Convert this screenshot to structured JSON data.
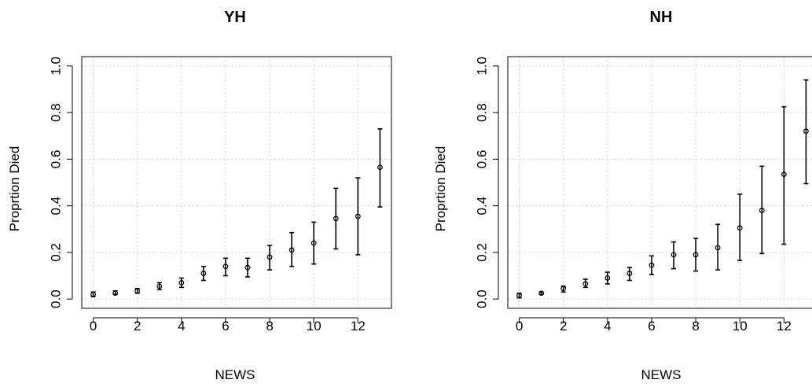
{
  "chart_data": [
    {
      "type": "scatter",
      "title": "YH",
      "x_label": "NEWS",
      "y_label": "Proprtion Died",
      "x": [
        0,
        1,
        2,
        3,
        4,
        5,
        6,
        7,
        8,
        9,
        10,
        11,
        12,
        13
      ],
      "series": [
        {
          "color": "#000000",
          "values": [
            0.02,
            0.025,
            0.035,
            0.055,
            0.07,
            0.11,
            0.14,
            0.135,
            0.18,
            0.21,
            0.24,
            0.345,
            0.355,
            0.565
          ],
          "lower": [
            0.01,
            0.02,
            0.025,
            0.04,
            0.05,
            0.08,
            0.1,
            0.095,
            0.125,
            0.14,
            0.15,
            0.215,
            0.19,
            0.395
          ],
          "upper": [
            0.03,
            0.035,
            0.045,
            0.07,
            0.09,
            0.14,
            0.175,
            0.175,
            0.23,
            0.285,
            0.33,
            0.475,
            0.52,
            0.73
          ]
        }
      ],
      "xlim": [
        -0.52,
        13.52
      ],
      "xticks": [
        0,
        2,
        4,
        6,
        8,
        10,
        12
      ],
      "ylim": [
        -0.04,
        1.04
      ],
      "yticks": [
        {
          "value": 0,
          "label": "0.0"
        },
        {
          "value": 0.2,
          "label": "0.2"
        },
        {
          "value": 0.4,
          "label": "0.4"
        },
        {
          "value": 0.6,
          "label": "0.6"
        },
        {
          "value": 0.8,
          "label": "0.8"
        },
        {
          "value": 1,
          "label": "1.0"
        }
      ],
      "grid": true
    },
    {
      "type": "scatter",
      "title": "NH",
      "x_label": "NEWS",
      "y_label": "Proprtion Died",
      "x": [
        0,
        1,
        2,
        3,
        4,
        5,
        6,
        7,
        8,
        9,
        10,
        11,
        12,
        13
      ],
      "series": [
        {
          "color": "#000000",
          "values": [
            0.015,
            0.025,
            0.045,
            0.065,
            0.09,
            0.11,
            0.145,
            0.19,
            0.19,
            0.22,
            0.305,
            0.38,
            0.535,
            0.72
          ],
          "lower": [
            0.005,
            0.02,
            0.03,
            0.05,
            0.065,
            0.08,
            0.105,
            0.13,
            0.12,
            0.125,
            0.165,
            0.195,
            0.235,
            0.495
          ],
          "upper": [
            0.025,
            0.03,
            0.055,
            0.085,
            0.115,
            0.135,
            0.185,
            0.245,
            0.26,
            0.32,
            0.45,
            0.57,
            0.825,
            0.94
          ]
        }
      ],
      "xlim": [
        -0.52,
        13.52
      ],
      "xticks": [
        0,
        2,
        4,
        6,
        8,
        10,
        12
      ],
      "ylim": [
        -0.04,
        1.04
      ],
      "yticks": [
        {
          "value": 0,
          "label": "0.0"
        },
        {
          "value": 0.2,
          "label": "0.2"
        },
        {
          "value": 0.4,
          "label": "0.4"
        },
        {
          "value": 0.6,
          "label": "0.6"
        },
        {
          "value": 0.8,
          "label": "0.8"
        },
        {
          "value": 1,
          "label": "1.0"
        }
      ],
      "grid": true
    }
  ]
}
